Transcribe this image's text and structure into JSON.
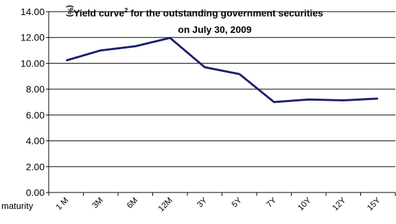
{
  "chart_data": {
    "type": "line",
    "title_line1": "Yield curve",
    "title_sup": "2",
    "title_line1_rest": " for the outstanding government securities",
    "title_line2": "on July  30, 2009",
    "ylabel": "(%)",
    "xlabel": "maturity",
    "ylim": [
      0,
      14
    ],
    "ytick_values": [
      0,
      2,
      4,
      6,
      8,
      10,
      12,
      14
    ],
    "ytick_labels": [
      "0.00",
      "2.00",
      "4.00",
      "6.00",
      "8.00",
      "10.00",
      "12.00",
      "14.00"
    ],
    "grid": "horizontal",
    "categories": [
      "1 M",
      "3M",
      "6M",
      "12M",
      "3Y",
      "5Y",
      "7Y",
      "10Y",
      "12Y",
      "15Y"
    ],
    "series": [
      {
        "values": [
          10.22,
          11.0,
          11.32,
          11.97,
          9.7,
          9.17,
          7.0,
          7.2,
          7.13,
          7.27
        ]
      }
    ],
    "line_color": "#1a1f6e"
  }
}
